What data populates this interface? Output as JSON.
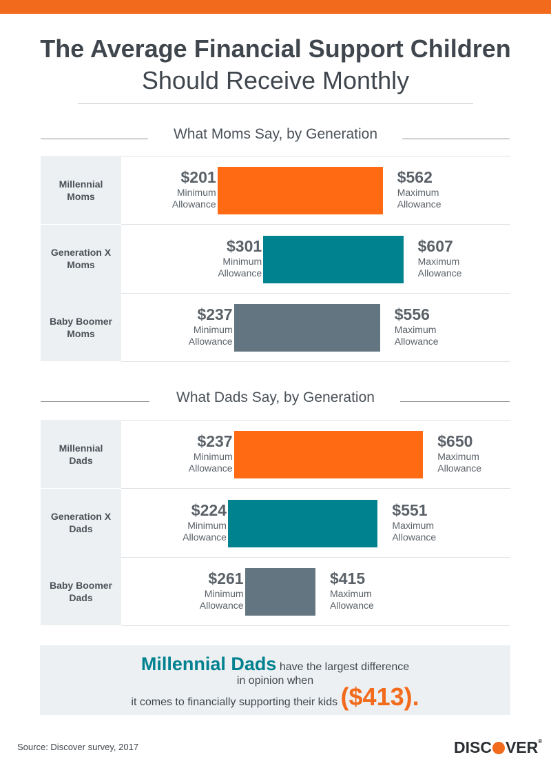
{
  "title": {
    "line1": "The Average Financial Support Children",
    "line2": "Should Receive Monthly"
  },
  "colors": {
    "millennial": "#ff6a13",
    "genx": "#00838f",
    "boomer": "#637580",
    "accent_orange": "#f26a1b",
    "accent_teal": "#00818f"
  },
  "chart_data": [
    {
      "type": "bar",
      "subtype": "floating range",
      "title": "What Moms Say, by Generation",
      "categories": [
        "Millennial Moms",
        "Generation X Moms",
        "Baby Boomer Moms"
      ],
      "min_label": "Minimum Allowance",
      "max_label": "Maximum Allowance",
      "rows": [
        {
          "label1": "Millennial",
          "label2": "Moms",
          "min": 201,
          "max": 562,
          "min_text": "$201",
          "max_text": "$562",
          "color_key": "millennial"
        },
        {
          "label1": "Generation X",
          "label2": "Moms",
          "min": 301,
          "max": 607,
          "min_text": "$301",
          "max_text": "$607",
          "color_key": "genx"
        },
        {
          "label1": "Baby Boomer",
          "label2": "Moms",
          "min": 237,
          "max": 556,
          "min_text": "$237",
          "max_text": "$556",
          "color_key": "boomer"
        }
      ]
    },
    {
      "type": "bar",
      "subtype": "floating range",
      "title": "What Dads Say, by Generation",
      "categories": [
        "Millennial Dads",
        "Generation X Dads",
        "Baby Boomer Dads"
      ],
      "min_label": "Minimum Allowance",
      "max_label": "Maximum Allowance",
      "rows": [
        {
          "label1": "Millennial",
          "label2": "Dads",
          "min": 237,
          "max": 650,
          "min_text": "$237",
          "max_text": "$650",
          "color_key": "millennial"
        },
        {
          "label1": "Generation X",
          "label2": "Dads",
          "min": 224,
          "max": 551,
          "min_text": "$224",
          "max_text": "$551",
          "color_key": "genx"
        },
        {
          "label1": "Baby Boomer",
          "label2": "Dads",
          "min": 261,
          "max": 415,
          "min_text": "$261",
          "max_text": "$415",
          "color_key": "boomer"
        }
      ]
    }
  ],
  "callout": {
    "highlight": "Millennial Dads",
    "text1": " have the largest difference",
    "text2": "in opinion when",
    "text3": "it comes to financially supporting their kids ",
    "amount": "($413)."
  },
  "footer": {
    "source": "Source: Discover survey, 2017",
    "logo_text": "DISCOVER",
    "logo_pre": "DISC",
    "logo_post": "VER",
    "logo_reg": "®"
  }
}
